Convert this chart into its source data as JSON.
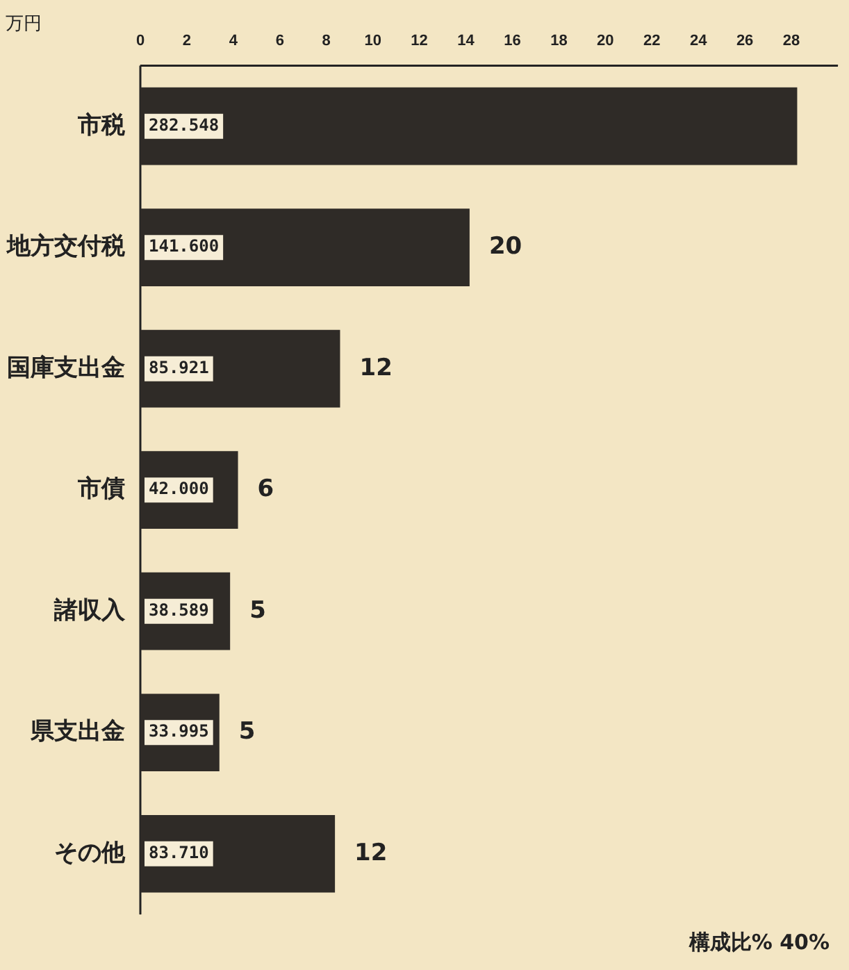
{
  "chart_data": {
    "type": "bar",
    "orientation": "horizontal",
    "ylabel": "万円",
    "categories": [
      "市税",
      "地方交付税",
      "国庫支出金",
      "市債",
      "諸収入",
      "県支出金",
      "その他"
    ],
    "values": [
      28.25,
      14.16,
      8.59,
      4.2,
      3.86,
      3.4,
      8.37
    ],
    "color": "#2f2b27",
    "xlim": [
      0,
      30
    ],
    "xticks": [
      0,
      2,
      4,
      6,
      8,
      10,
      12,
      14,
      16,
      18,
      20,
      22,
      24,
      26,
      28
    ],
    "annotations": [
      "282.548",
      "141.600",
      "85.921",
      "42.000",
      "38.589",
      "33.995",
      "83.710",
      {
        "text": "20",
        "x": 14.16,
        "y": "地方交付税"
      },
      {
        "text": "12",
        "x": 8.59,
        "y": "国庫支出金"
      },
      {
        "text": "6",
        "x": 4.2,
        "y": "市債"
      },
      {
        "text": "5",
        "x": 3.86,
        "y": "諸収入"
      },
      {
        "text": "5",
        "x": 3.4,
        "y": "県支出金"
      },
      {
        "text": "12",
        "x": 8.37,
        "y": "その他"
      },
      "構成比%",
      "40%"
    ]
  }
}
